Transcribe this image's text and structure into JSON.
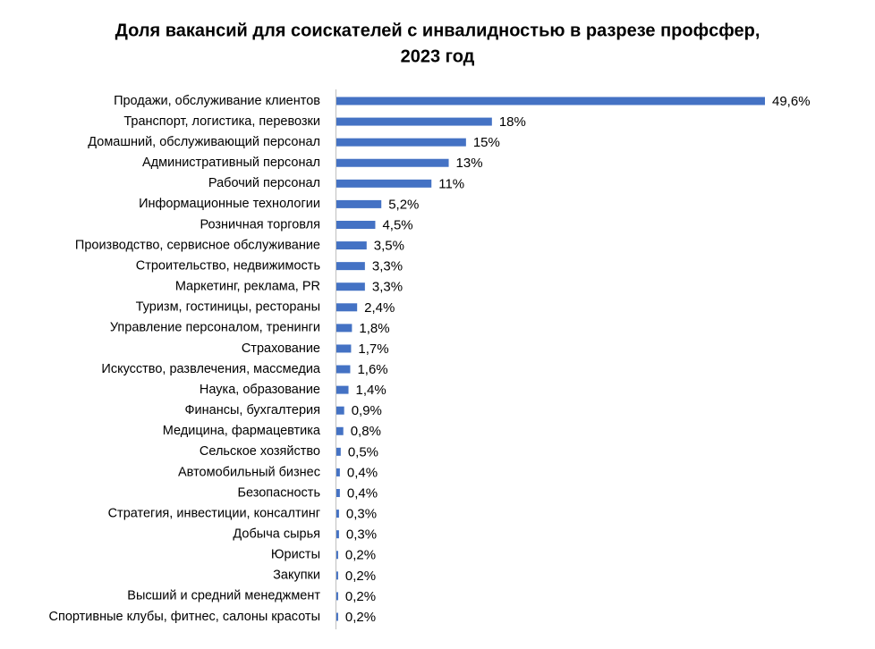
{
  "chart_data": {
    "type": "bar",
    "orientation": "horizontal",
    "title": [
      "Доля вакансий для соискателей с инвалидностью в разрезе профсфер,",
      "2023 год"
    ],
    "color": "#4472c4",
    "categories": [
      "Продажи, обслуживание клиентов",
      "Транспорт, логистика, перевозки",
      "Домашний, обслуживающий персонал",
      "Административный персонал",
      "Рабочий персонал",
      "Информационные технологии",
      "Розничная торговля",
      "Производство, сервисное обслуживание",
      "Строительство, недвижимость",
      "Маркетинг, реклама, PR",
      "Туризм, гостиницы, рестораны",
      "Управление персоналом, тренинги",
      "Страхование",
      "Искусство, развлечения, массмедиа",
      "Наука, образование",
      "Финансы, бухгалтерия",
      "Медицина, фармацевтика",
      "Сельское хозяйство",
      "Автомобильный бизнес",
      "Безопасность",
      "Стратегия, инвестиции, консалтинг",
      "Добыча сырья",
      "Юристы",
      "Закупки",
      "Высший и средний менеджмент",
      "Спортивные клубы, фитнес, салоны красоты"
    ],
    "values": [
      49.6,
      18,
      15,
      13,
      11,
      5.2,
      4.5,
      3.5,
      3.3,
      3.3,
      2.4,
      1.8,
      1.7,
      1.6,
      1.4,
      0.9,
      0.8,
      0.5,
      0.4,
      0.4,
      0.3,
      0.3,
      0.2,
      0.2,
      0.2,
      0.2
    ],
    "value_labels": [
      "49,6%",
      "18%",
      "15%",
      "13%",
      "11%",
      "5,2%",
      "4,5%",
      "3,5%",
      "3,3%",
      "3,3%",
      "2,4%",
      "1,8%",
      "1,7%",
      "1,6%",
      "1,4%",
      "0,9%",
      "0,8%",
      "0,5%",
      "0,4%",
      "0,4%",
      "0,3%",
      "0,3%",
      "0,2%",
      "0,2%",
      "0,2%",
      "0,2%"
    ]
  }
}
